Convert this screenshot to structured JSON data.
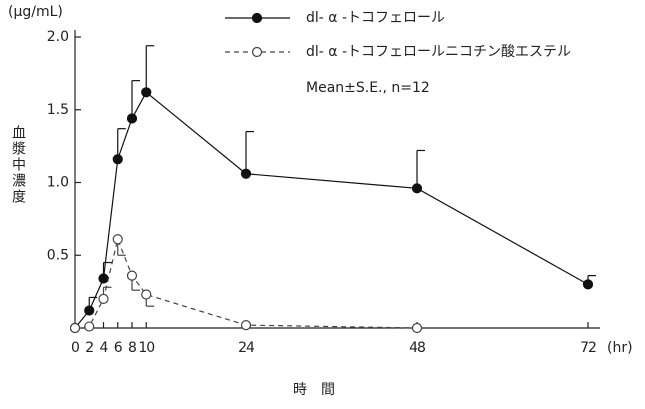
{
  "chart_data": {
    "type": "line",
    "y_unit": "(μg/mL)",
    "y_label": "血漿中濃度",
    "x_label": "時　間",
    "x_unit": "(hr)",
    "annotation": "Mean±S.E., n=12",
    "x": [
      0,
      2,
      4,
      6,
      8,
      10,
      24,
      48,
      72
    ],
    "series": [
      {
        "name": "dl- α -トコフェロール",
        "color": "#111111",
        "marker": "filled",
        "dashed": false,
        "values": [
          0,
          0.12,
          0.34,
          1.16,
          1.44,
          1.62,
          1.06,
          0.96,
          0.3
        ],
        "errors": [
          0,
          0.09,
          0.11,
          0.21,
          0.26,
          0.32,
          0.29,
          0.26,
          0.06
        ],
        "error_sides": [
          "up",
          "up",
          "up",
          "up",
          "up",
          "up",
          "up",
          "up",
          "up"
        ]
      },
      {
        "name": "dl- α -トコフェロールニコチン酸エステル",
        "color": "#444444",
        "marker": "open",
        "dashed": true,
        "values": [
          0,
          0.01,
          0.2,
          0.61,
          0.36,
          0.23,
          0.02,
          0,
          null
        ],
        "errors": [
          0,
          0,
          0.08,
          0.11,
          0.1,
          0.08,
          0,
          0,
          null
        ],
        "error_sides": [
          "up",
          "up",
          "up",
          "down",
          "down",
          "down",
          "down",
          "down",
          null
        ]
      }
    ],
    "xlim": [
      0,
      74
    ],
    "ylim": [
      0,
      2.0
    ],
    "xticks": [
      0,
      2,
      4,
      6,
      8,
      10,
      24,
      48,
      72
    ],
    "yticks": [
      0.5,
      {
        "value": 1.0,
        "label": "1.0"
      },
      1.5,
      {
        "value": 2.0,
        "label": "2.0"
      }
    ]
  }
}
